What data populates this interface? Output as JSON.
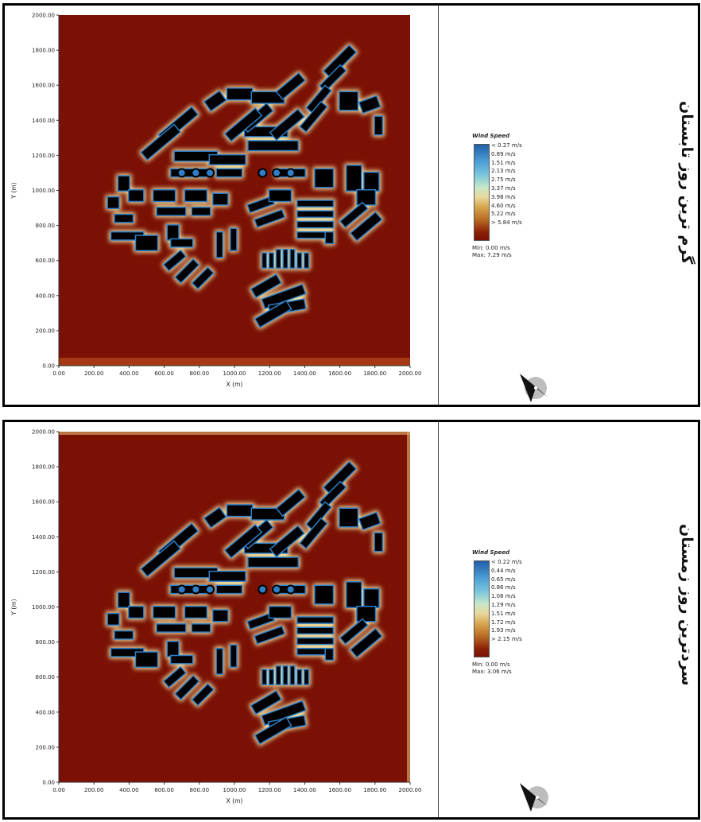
{
  "panels": [
    {
      "id": "summer",
      "title": "گرم ترین روز تابستان",
      "legend": {
        "title": "Wind Speed",
        "levels": [
          "< 0.27 m/s",
          "0.89  m/s",
          "1.51  m/s",
          "2.13  m/s",
          "2.75  m/s",
          "3.37  m/s",
          "3.98  m/s",
          "4.60  m/s",
          "5.22  m/s",
          "> 5.84 m/s"
        ],
        "min": "Min: 0.00 m/s",
        "max": "Max: 7.29 m/s"
      },
      "x_axis": {
        "label": "X (m)",
        "ticks": [
          "0.00",
          "200.00",
          "400.00",
          "600.00",
          "800.00",
          "1000.00",
          "1200.00",
          "1400.00",
          "1600.00",
          "1800.00",
          "2000.00"
        ]
      },
      "y_axis": {
        "label": "Y (m)",
        "ticks": [
          "0.00",
          "200.00",
          "400.00",
          "600.00",
          "800.00",
          "1000.00",
          "1200.00",
          "1400.00",
          "1600.00",
          "1800.00",
          "2000.00"
        ]
      },
      "colors": {
        "background_field": "#7a1104",
        "building": "#000000",
        "calm": "#2e7fc8",
        "halo": "#f2e3a0"
      }
    },
    {
      "id": "winter",
      "title": "سردترین روز زمستان",
      "legend": {
        "title": "Wind Speed",
        "levels": [
          "< 0.22 m/s",
          "0.44  m/s",
          "0.65  m/s",
          "0.86  m/s",
          "1.08  m/s",
          "1.29  m/s",
          "1.51  m/s",
          "1.72  m/s",
          "1.93  m/s",
          "> 2.15 m/s"
        ],
        "min": "Min: 0.00 m/s",
        "max": "Max: 3.06 m/s"
      },
      "x_axis": {
        "label": "X (m)",
        "ticks": [
          "0.00",
          "200.00",
          "400.00",
          "600.00",
          "800.00",
          "1000.00",
          "1200.00",
          "1400.00",
          "1600.00",
          "1800.00",
          "2000.00"
        ]
      },
      "y_axis": {
        "label": "Y (m)",
        "ticks": [
          "0.00",
          "200.00",
          "400.00",
          "600.00",
          "800.00",
          "1000.00",
          "1200.00",
          "1400.00",
          "1600.00",
          "1800.00",
          "2000.00"
        ]
      },
      "colors": {
        "background_field": "#7a1104",
        "building": "#000000",
        "calm": "#2e7fc8",
        "halo": "#f2e3a0"
      }
    }
  ]
}
